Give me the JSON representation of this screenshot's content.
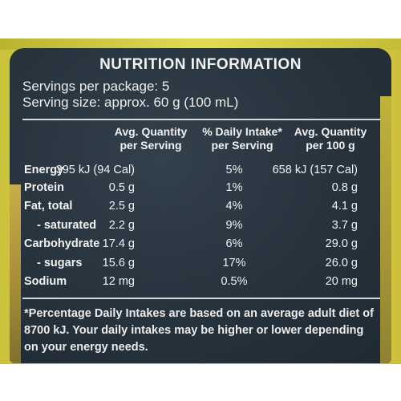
{
  "panel": {
    "title": "NUTRITION INFORMATION",
    "servings_per_package": "Servings per package: 5",
    "serving_size": "Serving size: approx. 60 g (100 mL)"
  },
  "table": {
    "headers": {
      "col1": "Avg. Quantity\nper Serving",
      "col2": "% Daily Intake*\nper Serving",
      "col3": "Avg. Quantity\nper 100 g"
    },
    "rows": [
      {
        "label": "Energy",
        "per_serving": "395 kJ (94 Cal)",
        "daily_intake": "5%",
        "per_100g": "658 kJ (157 Cal)"
      },
      {
        "label": "Protein",
        "per_serving": "0.5 g",
        "daily_intake": "1%",
        "per_100g": "0.8 g"
      },
      {
        "label": "Fat, total",
        "per_serving": "2.5 g",
        "daily_intake": "4%",
        "per_100g": "4.1 g"
      },
      {
        "label": "- saturated",
        "per_serving": "2.2 g",
        "daily_intake": "9%",
        "per_100g": "3.7 g"
      },
      {
        "label": "Carbohydrate",
        "per_serving": "17.4 g",
        "daily_intake": "6%",
        "per_100g": "29.0 g"
      },
      {
        "label": "- sugars",
        "per_serving": "15.6 g",
        "daily_intake": "17%",
        "per_100g": "26.0 g"
      },
      {
        "label": "Sodium",
        "per_serving": "12 mg",
        "daily_intake": "0.5%",
        "per_100g": "20 mg"
      }
    ]
  },
  "footnote": "*Percentage Daily Intakes are based on an average adult diet of 8700 kJ. Your daily intakes may be higher or lower depending on your energy needs."
}
